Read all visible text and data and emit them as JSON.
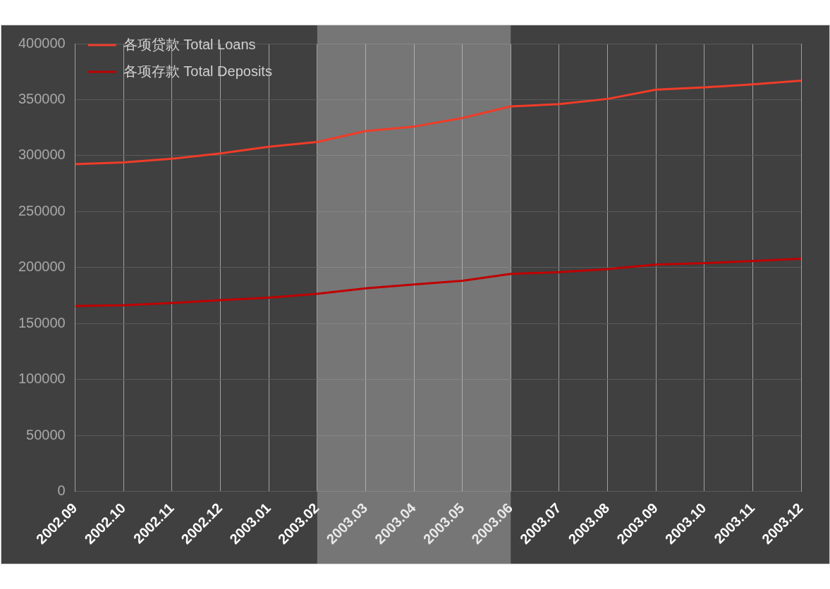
{
  "chart_data": {
    "type": "line",
    "categories": [
      "2002.09",
      "2002.10",
      "2002.11",
      "2002.12",
      "2003.01",
      "2003.02",
      "2003.03",
      "2003.04",
      "2003.05",
      "2003.06",
      "2003.07",
      "2003.08",
      "2003.09",
      "2003.10",
      "2003.11",
      "2003.12"
    ],
    "series": [
      {
        "name": "各项贷款 Total Loans",
        "color": "#f03c28",
        "values": [
          292500,
          294000,
          297300,
          302000,
          308000,
          312300,
          322000,
          326000,
          333600,
          344000,
          346000,
          350700,
          359000,
          361000,
          363700,
          367000
        ]
      },
      {
        "name": "各项存款 Total Deposits",
        "color": "#c00000",
        "values": [
          165800,
          166500,
          168500,
          171000,
          173300,
          176700,
          181500,
          185000,
          188400,
          194500,
          196000,
          198700,
          202800,
          204000,
          206000,
          208000
        ]
      }
    ],
    "ylim": [
      0,
      400000
    ],
    "yticks": [
      0,
      50000,
      100000,
      150000,
      200000,
      250000,
      300000,
      350000,
      400000
    ],
    "bands": [
      {
        "axis": "x",
        "from": "2003.02",
        "to": "2003.06",
        "color": "#c8c8c8"
      }
    ],
    "grid": true,
    "legend": "top left",
    "marker": "none",
    "line_style": "solid"
  }
}
